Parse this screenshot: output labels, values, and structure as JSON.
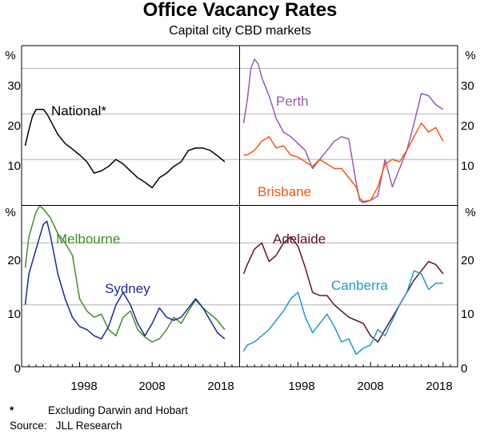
{
  "title": "Office Vacancy Rates",
  "subtitle": "Capital city CBD markets",
  "footnote": {
    "marker": "*",
    "text": "Excluding Darwin and Hobart"
  },
  "source": "Source:   JLL Research",
  "colors": {
    "national": "#000000",
    "perth": "#9b59b6",
    "brisbane": "#f2560f",
    "melbourne": "#3f8f2a",
    "sydney": "#1b2a8f",
    "adelaide": "#5c1230",
    "canberra": "#1f9ac8",
    "gridline": "#b3b3b3",
    "frame": "#000000"
  },
  "chart_data": {
    "type": "line",
    "x_axis": {
      "ticks": [
        1998,
        2008,
        2018
      ],
      "range": [
        1990,
        2020
      ]
    },
    "y_axis": {
      "unit": "%",
      "ticks_top": [
        "10",
        "20",
        "30"
      ],
      "ticks_bottom": [
        "0",
        "10",
        "20"
      ],
      "top_range": [
        0,
        35
      ],
      "bottom_range": [
        0,
        26
      ]
    },
    "panels": [
      {
        "name": "national",
        "position": "top-left",
        "series": [
          {
            "name": "National*",
            "color_key": "national",
            "x": [
              1990.5,
              1991,
              1991.5,
              1992,
              1992.5,
              1993,
              1993.5,
              1994,
              1995,
              1996,
              1997,
              1998,
              1999,
              2000,
              2001,
              2002,
              2003,
              2004,
              2005,
              2006,
              2007,
              2008,
              2009,
              2010,
              2011,
              2012,
              2013,
              2014,
              2015,
              2016,
              2017,
              2018
            ],
            "y": [
              13,
              16.5,
              19.5,
              21,
              21,
              21,
              20,
              18.5,
              15.5,
              13.5,
              12.3,
              11,
              9.5,
              7,
              7.5,
              8.5,
              10,
              9,
              7.5,
              6,
              5,
              3.8,
              6,
              7,
              8.5,
              9.5,
              12,
              12.5,
              12.5,
              12,
              10.8,
              9.5
            ]
          }
        ]
      },
      {
        "name": "perth-brisbane",
        "position": "top-right",
        "series": [
          {
            "name": "Perth",
            "color_key": "perth",
            "x": [
              1990.5,
              1991,
              1991.5,
              1992,
              1992.5,
              1993,
              1993.5,
              1994,
              1995,
              1996,
              1997,
              1998,
              1999,
              2000,
              2001,
              2002,
              2003,
              2004,
              2005,
              2006,
              2006.5,
              2007,
              2008,
              2009,
              2010,
              2011,
              2012,
              2013,
              2014,
              2015,
              2016,
              2017,
              2018
            ],
            "y": [
              18,
              23,
              30,
              32,
              31,
              28,
              26,
              24,
              19,
              16,
              15,
              13.5,
              12,
              8,
              10,
              12,
              14,
              15,
              14.5,
              5,
              1,
              0.5,
              1,
              2,
              10,
              4,
              8,
              12,
              18,
              24.5,
              24,
              22,
              21
            ]
          },
          {
            "name": "Brisbane",
            "color_key": "brisbane",
            "x": [
              1990.5,
              1991,
              1992,
              1993,
              1994,
              1995,
              1996,
              1997,
              1998,
              1999,
              2000,
              2001,
              2002,
              2003,
              2004,
              2005,
              2006,
              2006.5,
              2007,
              2008,
              2009,
              2010,
              2011,
              2012,
              2013,
              2014,
              2015,
              2016,
              2017,
              2018
            ],
            "y": [
              11,
              11,
              12,
              14,
              15,
              12.5,
              13,
              11,
              10.5,
              9.5,
              8.5,
              10,
              9,
              8,
              8,
              6,
              4,
              1.5,
              0.8,
              1,
              4,
              9,
              10,
              9.5,
              12,
              15,
              18,
              16,
              17,
              14
            ]
          }
        ]
      },
      {
        "name": "melbourne-sydney",
        "position": "bottom-left",
        "series": [
          {
            "name": "Melbourne",
            "color_key": "melbourne",
            "x": [
              1990.5,
              1991,
              1992,
              1992.5,
              1993,
              1994,
              1995,
              1996,
              1997,
              1998,
              1999,
              2000,
              2001,
              2002,
              2003,
              2004,
              2005,
              2006,
              2007,
              2008,
              2009,
              2010,
              2011,
              2012,
              2013,
              2014,
              2015,
              2016,
              2017,
              2018
            ],
            "y": [
              16,
              21,
              25,
              26,
              25.5,
              24,
              21.5,
              20,
              18,
              11,
              9,
              8,
              8.5,
              6,
              5,
              8,
              9,
              6,
              4.8,
              4,
              4.5,
              6,
              8,
              7,
              9,
              10.8,
              9.5,
              8.5,
              7.5,
              6
            ]
          },
          {
            "name": "Sydney",
            "color_key": "sydney",
            "x": [
              1990.5,
              1991,
              1992,
              1993,
              1993.5,
              1994,
              1995,
              1996,
              1997,
              1998,
              1999,
              2000,
              2001,
              2002,
              2003,
              2004,
              2005,
              2006,
              2007,
              2008,
              2009,
              2010,
              2011,
              2012,
              2013,
              2014,
              2015,
              2016,
              2017,
              2018
            ],
            "y": [
              10,
              15,
              19,
              23,
              23.5,
              21,
              15,
              11,
              8,
              6.5,
              6,
              5,
              4.5,
              6.5,
              10,
              12,
              10,
              7,
              5,
              7,
              9.5,
              8,
              7.5,
              8,
              9.5,
              11,
              9.5,
              7.5,
              5.5,
              4.5
            ]
          }
        ]
      },
      {
        "name": "adelaide-canberra",
        "position": "bottom-right",
        "series": [
          {
            "name": "Adelaide",
            "color_key": "adelaide",
            "x": [
              1990.5,
              1991,
              1992,
              1993,
              1994,
              1995,
              1996,
              1997,
              1998,
              1999,
              2000,
              2001,
              2002,
              2003,
              2004,
              2005,
              2006,
              2007,
              2008,
              2009,
              2010,
              2011,
              2012,
              2013,
              2014,
              2015,
              2016,
              2017,
              2018
            ],
            "y": [
              15,
              16.5,
              19,
              20,
              17,
              18,
              20,
              21,
              19.5,
              16,
              12,
              11.5,
              11.5,
              10,
              9,
              8,
              7.5,
              7,
              5,
              4,
              6,
              8,
              10,
              12,
              14,
              15.5,
              17,
              16.5,
              15
            ]
          },
          {
            "name": "Canberra",
            "color_key": "canberra",
            "x": [
              1990.5,
              1991,
              1992,
              1993,
              1994,
              1995,
              1996,
              1997,
              1998,
              1999,
              2000,
              2001,
              2002,
              2003,
              2004,
              2005,
              2006,
              2007,
              2008,
              2009,
              2010,
              2011,
              2012,
              2013,
              2014,
              2015,
              2016,
              2017,
              2018
            ],
            "y": [
              2.5,
              3.5,
              4,
              5,
              6,
              7.5,
              9,
              11,
              12,
              8,
              5.5,
              7,
              8.5,
              6.5,
              4,
              4.5,
              2,
              3,
              3.5,
              6,
              5,
              7.5,
              10,
              12,
              15.5,
              15,
              12.5,
              13.5,
              13.5
            ]
          }
        ]
      }
    ]
  }
}
